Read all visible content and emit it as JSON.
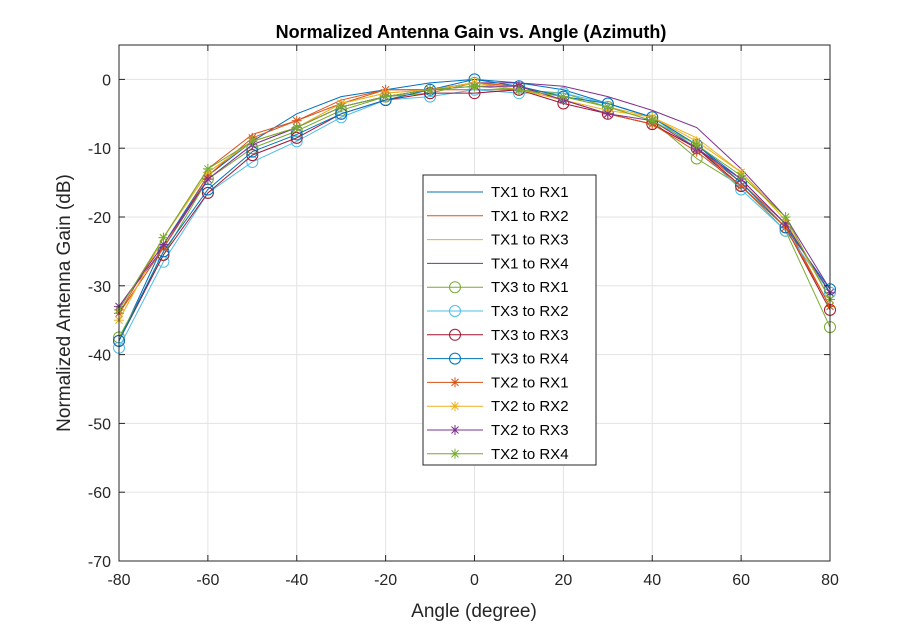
{
  "chart_data": {
    "type": "line",
    "title": "Normalized Antenna Gain vs. Angle (Azimuth)",
    "xlabel": "Angle (degree)",
    "ylabel": "Normalized Antenna Gain (dB)",
    "xlim": [
      -80,
      80
    ],
    "ylim": [
      -70,
      5
    ],
    "xticks": [
      -80,
      -60,
      -40,
      -20,
      0,
      20,
      40,
      60,
      80
    ],
    "yticks": [
      0,
      -10,
      -20,
      -30,
      -40,
      -50,
      -60,
      -70
    ],
    "grid": true,
    "legend_position": "center",
    "x": [
      -80,
      -70,
      -60,
      -50,
      -40,
      -30,
      -20,
      -10,
      0,
      10,
      20,
      30,
      40,
      50,
      60,
      70,
      80
    ],
    "series": [
      {
        "name": "TX1 to RX1",
        "color": "#0072BD",
        "marker": "none",
        "values": [
          -38.0,
          -24.0,
          -14.0,
          -9.0,
          -5.0,
          -2.5,
          -1.5,
          -0.5,
          0.0,
          -0.5,
          -1.5,
          -3.5,
          -5.5,
          -9.5,
          -14.5,
          -21.0,
          -31.0
        ]
      },
      {
        "name": "TX1 to RX2",
        "color": "#D95319",
        "marker": "none",
        "values": [
          -34.0,
          -23.0,
          -13.0,
          -8.0,
          -6.0,
          -3.0,
          -1.5,
          -1.5,
          -1.5,
          -1.5,
          -3.0,
          -5.0,
          -6.5,
          -10.0,
          -15.0,
          -21.0,
          -33.0
        ]
      },
      {
        "name": "TX1 to RX3",
        "color": "#EDB120",
        "marker": "none",
        "values": [
          -35.0,
          -23.0,
          -13.5,
          -9.0,
          -7.0,
          -3.5,
          -2.0,
          -1.5,
          -0.5,
          -1.0,
          -2.5,
          -4.0,
          -5.5,
          -8.5,
          -13.5,
          -20.0,
          -32.0
        ]
      },
      {
        "name": "TX1 to RX4",
        "color": "#7E2F8E",
        "marker": "none",
        "values": [
          -33.0,
          -24.5,
          -14.5,
          -9.5,
          -7.0,
          -4.0,
          -2.5,
          -1.5,
          -0.5,
          -0.5,
          -1.0,
          -2.5,
          -4.5,
          -7.0,
          -13.0,
          -20.0,
          -30.5
        ]
      },
      {
        "name": "TX3 to RX1",
        "color": "#77AC30",
        "marker": "circle",
        "values": [
          -37.5,
          -25.5,
          -14.5,
          -10.0,
          -7.5,
          -4.5,
          -2.5,
          -2.0,
          -0.5,
          -1.5,
          -2.0,
          -4.0,
          -6.0,
          -11.5,
          -15.5,
          -22.0,
          -36.0
        ]
      },
      {
        "name": "TX3 to RX2",
        "color": "#4DBEEE",
        "marker": "circle",
        "values": [
          -39.0,
          -26.5,
          -16.5,
          -12.0,
          -9.0,
          -5.5,
          -3.0,
          -2.5,
          -1.5,
          -2.0,
          -2.0,
          -3.5,
          -5.5,
          -10.0,
          -16.0,
          -22.0,
          -31.0
        ]
      },
      {
        "name": "TX3 to RX3",
        "color": "#A2142F",
        "marker": "circle",
        "values": [
          -38.0,
          -25.5,
          -16.5,
          -11.0,
          -8.5,
          -5.0,
          -3.0,
          -2.0,
          -2.0,
          -1.5,
          -3.5,
          -5.0,
          -6.5,
          -10.0,
          -15.5,
          -21.5,
          -33.5
        ]
      },
      {
        "name": "TX3 to RX4",
        "color": "#0072BD",
        "marker": "circle",
        "values": [
          -38.0,
          -25.0,
          -16.0,
          -10.5,
          -8.0,
          -5.0,
          -3.0,
          -1.5,
          0.0,
          -1.0,
          -2.5,
          -3.5,
          -5.5,
          -9.5,
          -15.0,
          -21.5,
          -30.5
        ]
      },
      {
        "name": "TX2 to RX1",
        "color": "#D95319",
        "marker": "asterisk",
        "values": [
          -34.0,
          -24.5,
          -14.0,
          -8.5,
          -6.0,
          -3.5,
          -1.5,
          -1.5,
          -0.5,
          -1.0,
          -3.0,
          -5.0,
          -6.5,
          -10.5,
          -15.5,
          -21.5,
          -33.0
        ]
      },
      {
        "name": "TX2 to RX2",
        "color": "#EDB120",
        "marker": "asterisk",
        "values": [
          -35.0,
          -23.0,
          -13.5,
          -9.0,
          -7.0,
          -3.5,
          -2.0,
          -1.5,
          -0.5,
          -1.5,
          -3.0,
          -4.5,
          -5.5,
          -9.0,
          -13.5,
          -20.5,
          -32.0
        ]
      },
      {
        "name": "TX2 to RX3",
        "color": "#7E2F8E",
        "marker": "asterisk",
        "values": [
          -33.0,
          -24.0,
          -14.5,
          -9.5,
          -7.0,
          -4.0,
          -2.5,
          -1.5,
          -1.0,
          -1.0,
          -3.0,
          -5.0,
          -6.0,
          -10.0,
          -14.5,
          -21.0,
          -31.0
        ]
      },
      {
        "name": "TX2 to RX4",
        "color": "#77AC30",
        "marker": "asterisk",
        "values": [
          -33.5,
          -23.0,
          -13.0,
          -9.0,
          -7.0,
          -4.0,
          -2.5,
          -1.5,
          -1.0,
          -1.5,
          -2.5,
          -4.0,
          -6.0,
          -9.5,
          -14.0,
          -20.0,
          -32.0
        ]
      }
    ]
  }
}
